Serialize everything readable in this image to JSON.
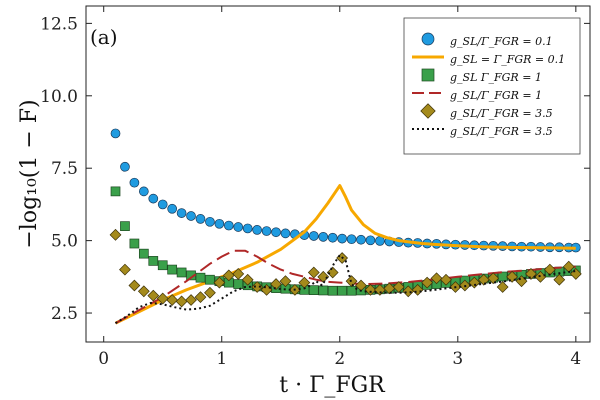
{
  "chart_data": {
    "type": "scatter",
    "panel_label": "(a)",
    "xlabel": "t · Γ_FGR",
    "ylabel": "−log₁₀(1 − F)",
    "xlim": [
      -0.15,
      4.12
    ],
    "ylim": [
      1.5,
      13.1
    ],
    "x_ticks": [
      0,
      1,
      2,
      3,
      4
    ],
    "y_ticks": [
      2.5,
      5.0,
      7.5,
      10.0,
      12.5
    ],
    "x_tick_labels": [
      "0",
      "1",
      "2",
      "3",
      "4"
    ],
    "y_tick_labels": [
      "2.5",
      "5.0",
      "7.5",
      "10.0",
      "12.5"
    ],
    "grid": false,
    "legend_position": "top-right",
    "legend": [
      "g_SL/Γ_FGR = 0.1",
      "g_SL = Γ_FGR = 0.1",
      "g_SL Γ_FGR = 1",
      "g_SL/Γ_FGR = 1",
      "g_SL/Γ_FGR = 3.5",
      "g_SL/Γ_FGR = 3.5"
    ],
    "series": [
      {
        "kind": "markers",
        "marker": "circle",
        "color": "#1f9be0",
        "x": [
          0.1,
          0.18,
          0.26,
          0.34,
          0.42,
          0.5,
          0.58,
          0.66,
          0.74,
          0.82,
          0.9,
          0.98,
          1.06,
          1.14,
          1.22,
          1.3,
          1.38,
          1.46,
          1.54,
          1.62,
          1.7,
          1.78,
          1.86,
          1.94,
          2.02,
          2.1,
          2.18,
          2.26,
          2.34,
          2.42,
          2.5,
          2.58,
          2.66,
          2.74,
          2.82,
          2.9,
          2.98,
          3.06,
          3.14,
          3.22,
          3.3,
          3.38,
          3.46,
          3.54,
          3.62,
          3.7,
          3.78,
          3.86,
          3.94,
          4.0
        ],
        "y": [
          8.7,
          7.55,
          7.0,
          6.7,
          6.45,
          6.25,
          6.1,
          5.95,
          5.85,
          5.75,
          5.65,
          5.58,
          5.52,
          5.47,
          5.42,
          5.37,
          5.33,
          5.29,
          5.25,
          5.22,
          5.19,
          5.16,
          5.13,
          5.1,
          5.07,
          5.05,
          5.03,
          5.01,
          4.99,
          4.97,
          4.95,
          4.93,
          4.92,
          4.9,
          4.89,
          4.87,
          4.86,
          4.85,
          4.84,
          4.83,
          4.82,
          4.81,
          4.8,
          4.79,
          4.79,
          4.78,
          4.77,
          4.77,
          4.76,
          4.76
        ]
      },
      {
        "kind": "line",
        "style": "solid",
        "color": "#f7a800",
        "x": [
          0.1,
          0.3,
          0.5,
          0.7,
          0.9,
          1.1,
          1.3,
          1.5,
          1.7,
          1.8,
          1.9,
          1.95,
          2.0,
          2.05,
          2.1,
          2.2,
          2.3,
          2.4,
          2.5,
          2.6,
          2.7,
          2.8,
          3.0,
          3.2,
          3.4,
          3.6,
          3.8,
          4.0
        ],
        "y": [
          2.15,
          2.55,
          2.95,
          3.3,
          3.6,
          3.9,
          4.25,
          4.7,
          5.3,
          5.75,
          6.3,
          6.6,
          6.9,
          6.5,
          6.05,
          5.55,
          5.25,
          5.1,
          5.0,
          4.95,
          4.9,
          4.87,
          4.82,
          4.79,
          4.77,
          4.76,
          4.75,
          4.74
        ]
      },
      {
        "kind": "markers",
        "marker": "square",
        "color": "#3aa04a",
        "x": [
          0.1,
          0.18,
          0.26,
          0.34,
          0.42,
          0.5,
          0.58,
          0.66,
          0.74,
          0.82,
          0.9,
          0.98,
          1.06,
          1.14,
          1.22,
          1.3,
          1.38,
          1.46,
          1.54,
          1.62,
          1.7,
          1.78,
          1.86,
          1.94,
          2.02,
          2.1,
          2.18,
          2.26,
          2.34,
          2.42,
          2.5,
          2.58,
          2.66,
          2.74,
          2.82,
          2.9,
          2.98,
          3.06,
          3.14,
          3.22,
          3.3,
          3.38,
          3.46,
          3.54,
          3.62,
          3.7,
          3.78,
          3.86,
          3.94,
          4.0
        ],
        "y": [
          6.7,
          5.5,
          4.9,
          4.55,
          4.3,
          4.15,
          4.0,
          3.9,
          3.8,
          3.72,
          3.65,
          3.6,
          3.55,
          3.5,
          3.46,
          3.42,
          3.39,
          3.36,
          3.34,
          3.32,
          3.3,
          3.29,
          3.28,
          3.27,
          3.27,
          3.27,
          3.28,
          3.3,
          3.32,
          3.34,
          3.37,
          3.4,
          3.43,
          3.47,
          3.5,
          3.54,
          3.58,
          3.62,
          3.65,
          3.69,
          3.72,
          3.76,
          3.79,
          3.82,
          3.85,
          3.88,
          3.9,
          3.93,
          3.95,
          3.97
        ]
      },
      {
        "kind": "line",
        "style": "dashed",
        "color": "#b02828",
        "x": [
          0.1,
          0.3,
          0.5,
          0.7,
          0.9,
          1.0,
          1.1,
          1.2,
          1.3,
          1.4,
          1.5,
          1.6,
          1.7,
          1.8,
          1.9,
          2.0,
          2.1,
          2.2,
          2.4,
          2.6,
          2.8,
          3.0,
          3.2,
          3.4,
          3.6,
          3.8,
          4.0
        ],
        "y": [
          2.15,
          2.6,
          3.05,
          3.6,
          4.2,
          4.45,
          4.65,
          4.65,
          4.45,
          4.2,
          4.0,
          3.85,
          3.75,
          3.65,
          3.58,
          3.55,
          3.52,
          3.5,
          3.52,
          3.58,
          3.66,
          3.75,
          3.84,
          3.92,
          3.98,
          4.05,
          4.1
        ]
      },
      {
        "kind": "markers",
        "marker": "diamond",
        "color": "#a48a1c",
        "x": [
          0.1,
          0.18,
          0.26,
          0.34,
          0.42,
          0.5,
          0.58,
          0.66,
          0.74,
          0.82,
          0.9,
          0.98,
          1.06,
          1.14,
          1.22,
          1.3,
          1.38,
          1.46,
          1.54,
          1.62,
          1.7,
          1.78,
          1.86,
          1.94,
          2.02,
          2.1,
          2.18,
          2.26,
          2.34,
          2.42,
          2.5,
          2.58,
          2.66,
          2.74,
          2.82,
          2.9,
          2.98,
          3.06,
          3.14,
          3.22,
          3.3,
          3.38,
          3.46,
          3.54,
          3.62,
          3.7,
          3.78,
          3.86,
          3.94,
          4.0
        ],
        "y": [
          5.2,
          4.0,
          3.45,
          3.25,
          3.1,
          3.0,
          2.95,
          2.9,
          2.95,
          3.05,
          3.2,
          3.55,
          3.8,
          3.85,
          3.65,
          3.4,
          3.3,
          3.5,
          3.6,
          3.3,
          3.55,
          3.9,
          3.75,
          3.9,
          4.4,
          3.6,
          3.45,
          3.3,
          3.3,
          3.35,
          3.4,
          3.25,
          3.3,
          3.55,
          3.7,
          3.65,
          3.4,
          3.45,
          3.55,
          3.65,
          3.7,
          3.4,
          3.75,
          3.6,
          3.85,
          3.75,
          4.0,
          3.65,
          4.1,
          3.85
        ]
      },
      {
        "kind": "line",
        "style": "dotted",
        "color": "#111111",
        "x": [
          0.1,
          0.2,
          0.3,
          0.4,
          0.5,
          0.6,
          0.7,
          0.8,
          0.9,
          1.0,
          1.1,
          1.2,
          1.3,
          1.4,
          1.5,
          1.6,
          1.7,
          1.75,
          1.8,
          1.85,
          1.9,
          1.95,
          2.0,
          2.05,
          2.1,
          2.15,
          2.2,
          2.3,
          2.4,
          2.5,
          2.6,
          2.7,
          2.8,
          2.9,
          3.0,
          3.2,
          3.4,
          3.6,
          3.8,
          4.0
        ],
        "y": [
          2.15,
          2.4,
          2.7,
          2.85,
          2.8,
          2.7,
          2.62,
          2.65,
          2.75,
          3.0,
          3.25,
          3.4,
          3.42,
          3.38,
          3.33,
          3.3,
          3.35,
          3.45,
          3.6,
          3.45,
          3.8,
          4.2,
          4.5,
          4.3,
          3.5,
          3.3,
          3.25,
          3.22,
          3.2,
          3.2,
          3.22,
          3.25,
          3.3,
          3.35,
          3.4,
          3.5,
          3.6,
          3.72,
          3.84,
          3.95
        ]
      }
    ]
  }
}
